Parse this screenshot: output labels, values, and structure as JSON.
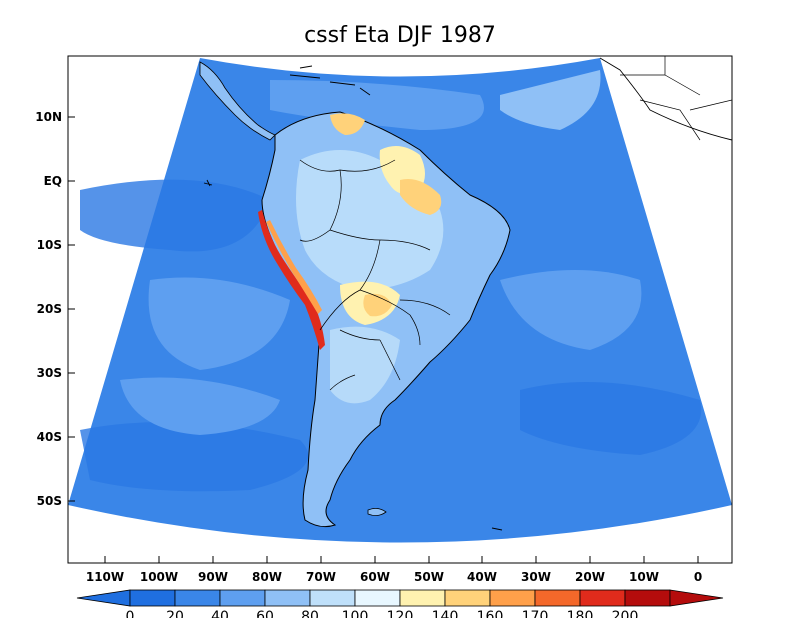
{
  "title": "cssf Eta DJF 1987",
  "y_axis_labels": [
    "10N",
    "EQ",
    "10S",
    "20S",
    "30S",
    "40S",
    "50S"
  ],
  "x_axis_labels": [
    "110W",
    "100W",
    "90W",
    "80W",
    "70W",
    "60W",
    "50W",
    "40W",
    "30W",
    "20W",
    "10W",
    "0"
  ],
  "colorbar": {
    "labels": [
      "0",
      "20",
      "40",
      "60",
      "80",
      "100",
      "120",
      "140",
      "160",
      "170",
      "180",
      "200"
    ],
    "colors": [
      "#1f6fe0",
      "#3a86e8",
      "#5e9ff0",
      "#8fc0f6",
      "#bfe0fa",
      "#e8f7ff",
      "#fff2b0",
      "#ffd27a",
      "#ffa04a",
      "#f4682a",
      "#e02b1c",
      "#b40c0c"
    ],
    "under_color": "#1f6fe0",
    "over_color": "#b40c0c"
  },
  "map": {
    "ocean_color": "#3a86e8",
    "land_color": "#8fc0f6",
    "projection_region": "South America"
  }
}
